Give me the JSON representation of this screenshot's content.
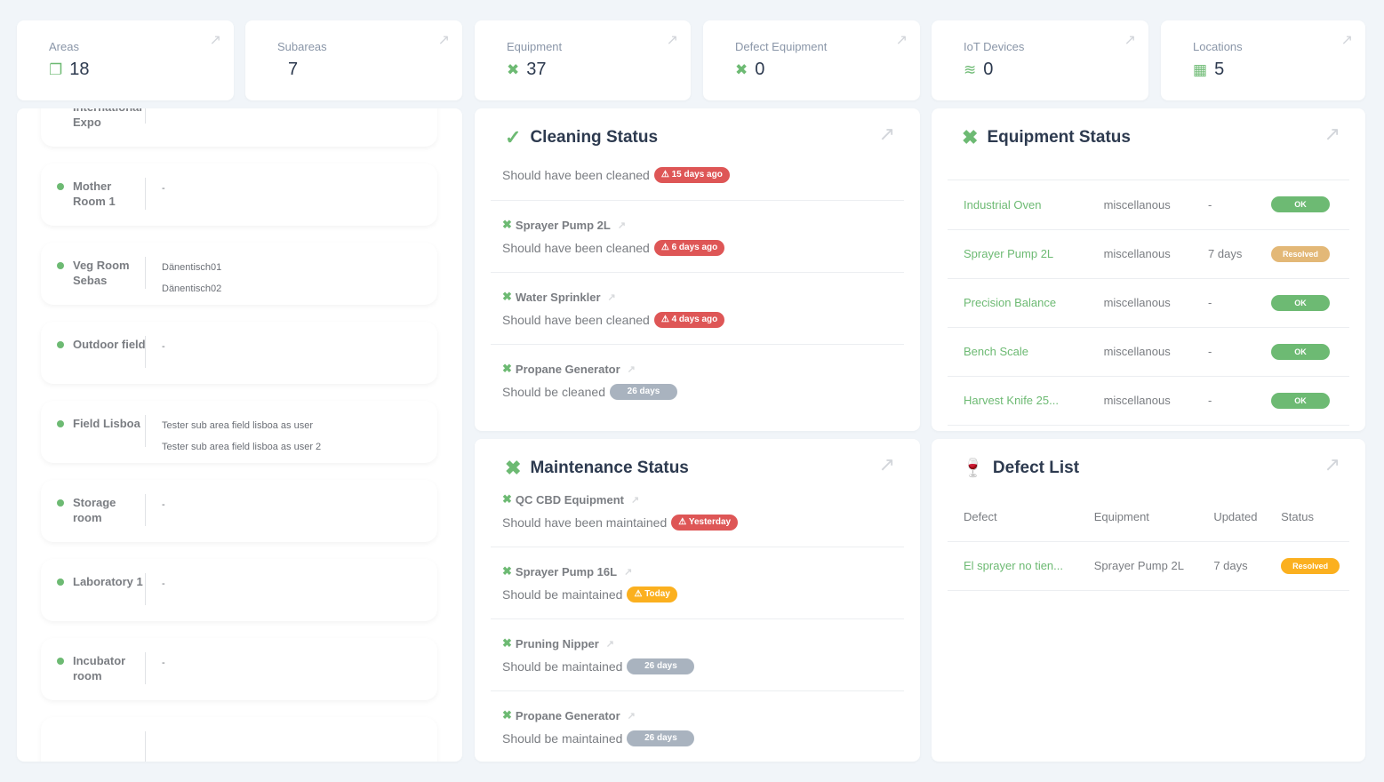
{
  "stats": [
    {
      "label": "Areas",
      "value": "18",
      "icon": "layers-icon"
    },
    {
      "label": "Subareas",
      "value": "7",
      "icon": ""
    },
    {
      "label": "Equipment",
      "value": "37",
      "icon": "tools-icon"
    },
    {
      "label": "Defect Equipment",
      "value": "0",
      "icon": "tools-icon"
    },
    {
      "label": "IoT Devices",
      "value": "0",
      "icon": "wifi-icon"
    },
    {
      "label": "Locations",
      "value": "5",
      "icon": "map-icon"
    }
  ],
  "areas": [
    {
      "name": "Hemp International Expo",
      "subareas": []
    },
    {
      "name": "Mother Room 1",
      "subareas": [
        "-"
      ]
    },
    {
      "name": "Veg Room Sebas",
      "subareas": [
        "Dänentisch01",
        "Dänentisch02"
      ]
    },
    {
      "name": "Outdoor field",
      "subareas": [
        "-"
      ]
    },
    {
      "name": "Field Lisboa",
      "subareas": [
        "Tester sub area field lisboa as user",
        "Tester sub area field lisboa as user 2"
      ]
    },
    {
      "name": "Storage room",
      "subareas": [
        "-"
      ]
    },
    {
      "name": "Laboratory 1",
      "subareas": [
        "-"
      ]
    },
    {
      "name": "Incubator room",
      "subareas": [
        "-"
      ]
    },
    {
      "name": "",
      "subareas": []
    }
  ],
  "cleaning": {
    "title": "Cleaning Status",
    "rows": [
      {
        "name": "",
        "text": "Should have been cleaned",
        "badge": "15 days ago",
        "tone": "red"
      },
      {
        "name": "Sprayer Pump 2L",
        "text": "Should have been cleaned",
        "badge": "6 days ago",
        "tone": "red"
      },
      {
        "name": "Water Sprinkler",
        "text": "Should have been cleaned",
        "badge": "4 days ago",
        "tone": "red"
      },
      {
        "name": "Propane Generator",
        "text": "Should be cleaned",
        "badge": "26 days",
        "tone": "gry"
      }
    ]
  },
  "maintenance": {
    "title": "Maintenance Status",
    "rows": [
      {
        "name": "QC CBD Equipment",
        "text": "Should have been maintained",
        "badge": "Yesterday",
        "tone": "red"
      },
      {
        "name": "Sprayer Pump 16L",
        "text": "Should be maintained",
        "badge": "Today",
        "tone": "yel"
      },
      {
        "name": "Pruning Nipper",
        "text": "Should be maintained",
        "badge": "26 days",
        "tone": "gry"
      },
      {
        "name": "Propane Generator",
        "text": "Should be maintained",
        "badge": "26 days",
        "tone": "gry"
      }
    ]
  },
  "equipment": {
    "title": "Equipment Status",
    "rows": [
      [
        "Industrial Oven",
        "miscellanous",
        "-",
        "OK",
        "grn"
      ],
      [
        "Sprayer Pump 2L",
        "miscellanous",
        "7 days",
        "Resolved",
        "tan"
      ],
      [
        "Precision Balance",
        "miscellanous",
        "-",
        "OK",
        "grn"
      ],
      [
        "Bench Scale",
        "miscellanous",
        "-",
        "OK",
        "grn"
      ],
      [
        "Harvest Knife 25...",
        "miscellanous",
        "-",
        "OK",
        "grn"
      ]
    ]
  },
  "defects": {
    "title": "Defect List",
    "headers": [
      "Defect",
      "Equipment",
      "Updated",
      "Status"
    ],
    "rows": [
      [
        "El sprayer no tien...",
        "Sprayer Pump 2L",
        "7 days",
        "Resolved",
        "yel"
      ]
    ]
  },
  "colors": {
    "accent": "#6dba73",
    "danger": "#de5656",
    "warning": "#fbb01f",
    "muted": "#a9b3bf"
  }
}
